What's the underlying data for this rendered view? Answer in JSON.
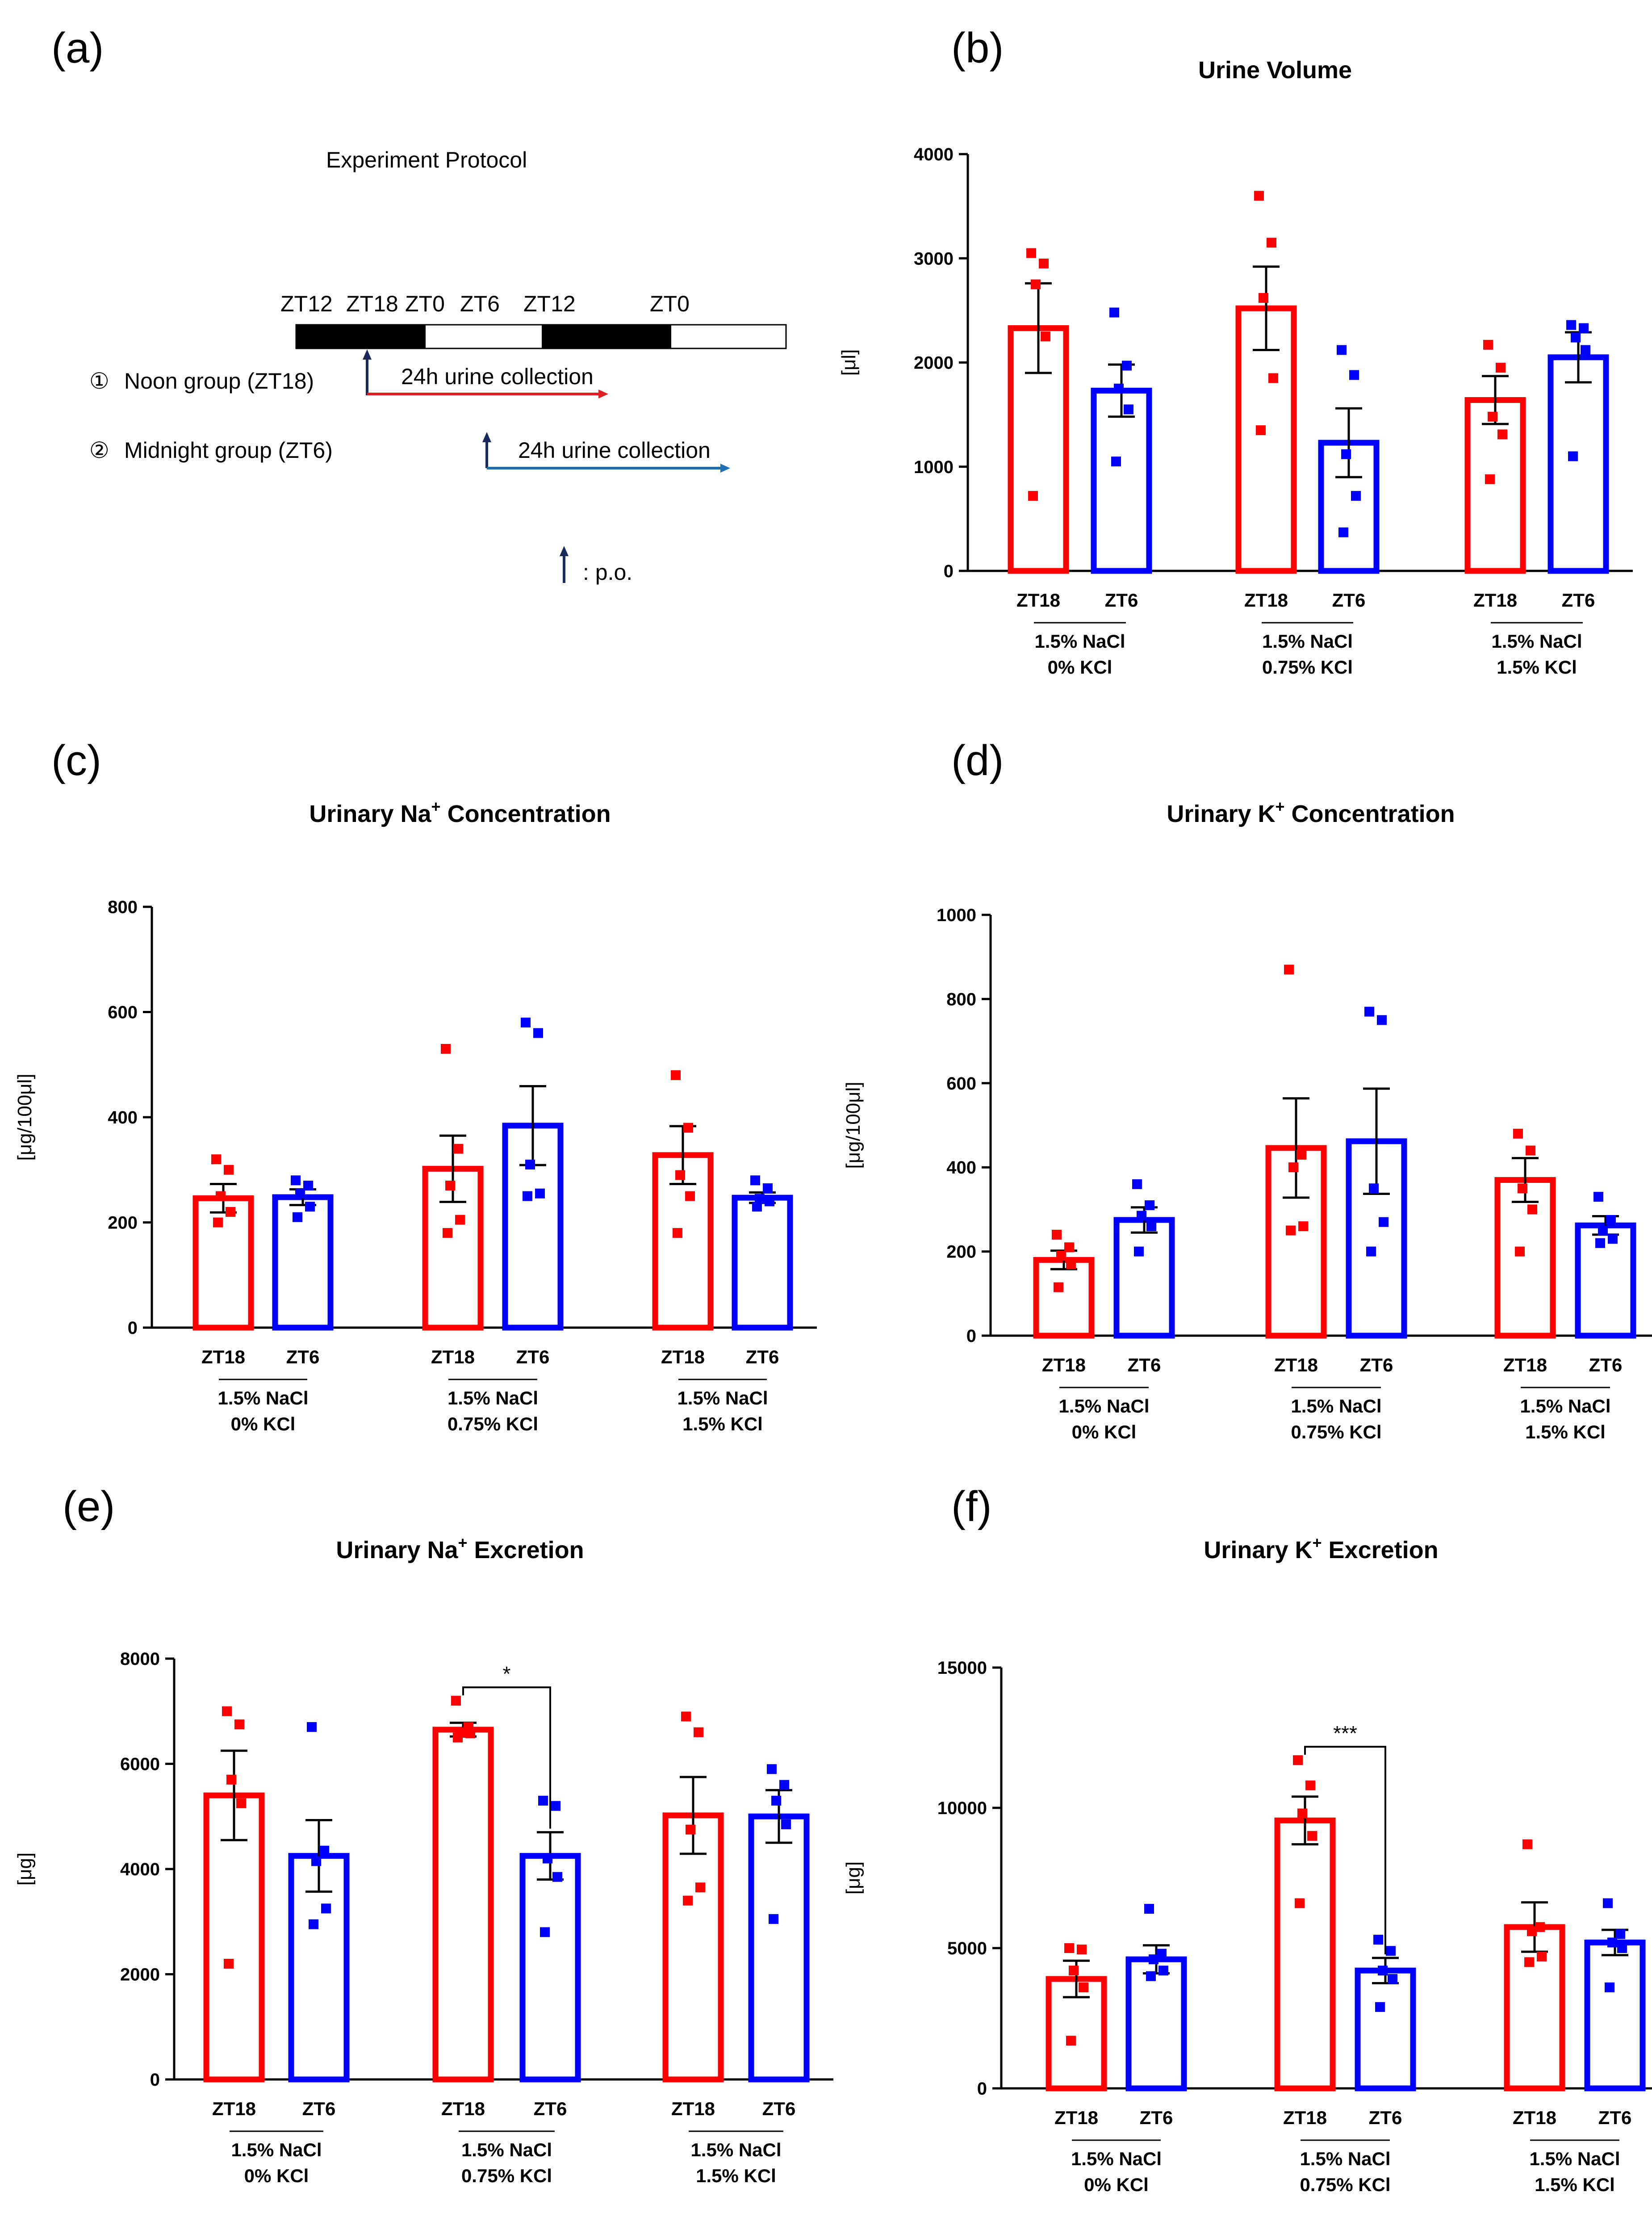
{
  "figure": {
    "panel_letters": [
      "(a)",
      "(b)",
      "(c)",
      "(d)",
      "(e)",
      "(f)"
    ]
  },
  "protocol": {
    "title": "Experiment Protocol",
    "zt_labels": [
      "ZT12",
      "ZT18",
      "ZT0",
      "ZT6",
      "ZT12",
      "ZT0"
    ],
    "groups": [
      {
        "marker": "①",
        "label": "Noon group (ZT18)",
        "collection": "24h  urine collection",
        "color": "#e02020"
      },
      {
        "marker": "②",
        "label": "Midnight group (ZT6)",
        "collection": "24h  urine collection",
        "color": "#1f6fb5"
      }
    ],
    "legend_text": ": p.o.",
    "arrow_color": "#1a2a5a"
  },
  "colors": {
    "zt18": "#ff0000",
    "zt6": "#0000ff"
  },
  "x_labels": {
    "bars": [
      "ZT18",
      "ZT6"
    ],
    "groups": [
      [
        "1.5% NaCl",
        "0% KCl"
      ],
      [
        "1.5% NaCl",
        "0.75% KCl"
      ],
      [
        "1.5% NaCl",
        "1.5% KCl"
      ]
    ]
  },
  "chart_data": [
    {
      "id": "b",
      "type": "bar",
      "title": "Urine Volume",
      "ylabel": "[μl]",
      "ylim": [
        0,
        4000
      ],
      "yticks": [
        0,
        1000,
        2000,
        3000,
        4000
      ],
      "categories": [
        "ZT18",
        "ZT6",
        "ZT18",
        "ZT6",
        "ZT18",
        "ZT6"
      ],
      "series": [
        {
          "name": "ZT18 (1.5% NaCl 0% KCl)",
          "mean": 2330,
          "sem": 430,
          "points": [
            3050,
            2950,
            2750,
            2250,
            720
          ]
        },
        {
          "name": "ZT6 (1.5% NaCl 0% KCl)",
          "mean": 1730,
          "sem": 250,
          "points": [
            2480,
            1970,
            1750,
            1550,
            1050
          ]
        },
        {
          "name": "ZT18 (1.5% NaCl 0.75% KCl)",
          "mean": 2520,
          "sem": 400,
          "points": [
            3600,
            3150,
            2620,
            1850,
            1350
          ]
        },
        {
          "name": "ZT6 (1.5% NaCl 0.75% KCl)",
          "mean": 1230,
          "sem": 330,
          "points": [
            2120,
            1880,
            1120,
            720,
            370
          ]
        },
        {
          "name": "ZT18 (1.5% NaCl 1.5% KCl)",
          "mean": 1640,
          "sem": 230,
          "points": [
            2170,
            1950,
            1480,
            1310,
            880
          ]
        },
        {
          "name": "ZT6 (1.5% NaCl 1.5% KCl)",
          "mean": 2050,
          "sem": 240,
          "points": [
            2360,
            2330,
            2240,
            2120,
            1100
          ]
        }
      ],
      "significance": []
    },
    {
      "id": "c",
      "type": "bar",
      "title": "Urinary Na",
      "title_sup": "+",
      "title_rest": " Concentration",
      "ylabel": "[μg/100μl]",
      "ylim": [
        0,
        800
      ],
      "yticks": [
        0,
        200,
        400,
        600,
        800
      ],
      "categories": [
        "ZT18",
        "ZT6",
        "ZT18",
        "ZT6",
        "ZT18",
        "ZT6"
      ],
      "series": [
        {
          "name": "ZT18 (1.5% NaCl 0% KCl)",
          "mean": 246,
          "sem": 27,
          "points": [
            320,
            300,
            250,
            220,
            200
          ]
        },
        {
          "name": "ZT6 (1.5% NaCl 0% KCl)",
          "mean": 248,
          "sem": 15,
          "points": [
            280,
            270,
            255,
            230,
            210
          ]
        },
        {
          "name": "ZT18 (1.5% NaCl 0.75% KCl)",
          "mean": 302,
          "sem": 63,
          "points": [
            530,
            340,
            270,
            205,
            180
          ]
        },
        {
          "name": "ZT6 (1.5% NaCl 0.75% KCl)",
          "mean": 384,
          "sem": 75,
          "points": [
            580,
            560,
            310,
            255,
            250
          ]
        },
        {
          "name": "ZT18 (1.5% NaCl 1.5% KCl)",
          "mean": 328,
          "sem": 55,
          "points": [
            480,
            380,
            290,
            250,
            180
          ]
        },
        {
          "name": "ZT6 (1.5% NaCl 1.5% KCl)",
          "mean": 247,
          "sem": 10,
          "points": [
            280,
            265,
            245,
            240,
            230
          ]
        }
      ],
      "significance": []
    },
    {
      "id": "d",
      "type": "bar",
      "title": "Urinary K",
      "title_sup": "+",
      "title_rest": " Concentration",
      "ylabel": "[μg/100μl]",
      "ylim": [
        0,
        1000
      ],
      "yticks": [
        0,
        200,
        400,
        600,
        800,
        1000
      ],
      "categories": [
        "ZT18",
        "ZT6",
        "ZT18",
        "ZT6",
        "ZT18",
        "ZT6"
      ],
      "series": [
        {
          "name": "ZT18 (1.5% NaCl 0% KCl)",
          "mean": 180,
          "sem": 22,
          "points": [
            240,
            210,
            190,
            170,
            115
          ]
        },
        {
          "name": "ZT6 (1.5% NaCl 0% KCl)",
          "mean": 275,
          "sem": 30,
          "points": [
            360,
            310,
            285,
            260,
            200
          ]
        },
        {
          "name": "ZT18 (1.5% NaCl 0.75% KCl)",
          "mean": 446,
          "sem": 118,
          "points": [
            870,
            430,
            400,
            260,
            250
          ]
        },
        {
          "name": "ZT6 (1.5% NaCl 0.75% KCl)",
          "mean": 462,
          "sem": 125,
          "points": [
            770,
            750,
            350,
            270,
            200
          ]
        },
        {
          "name": "ZT18 (1.5% NaCl 1.5% KCl)",
          "mean": 370,
          "sem": 52,
          "points": [
            480,
            440,
            350,
            300,
            200
          ]
        },
        {
          "name": "ZT6 (1.5% NaCl 1.5% KCl)",
          "mean": 262,
          "sem": 22,
          "points": [
            330,
            275,
            250,
            230,
            220
          ]
        }
      ],
      "significance": []
    },
    {
      "id": "e",
      "type": "bar",
      "title": "Urinary Na",
      "title_sup": "+",
      "title_rest": " Excretion",
      "ylabel": "[μg]",
      "ylim": [
        0,
        8000
      ],
      "yticks": [
        0,
        2000,
        4000,
        6000,
        8000
      ],
      "categories": [
        "ZT18",
        "ZT6",
        "ZT18",
        "ZT6",
        "ZT18",
        "ZT6"
      ],
      "series": [
        {
          "name": "ZT18 (1.5% NaCl 0% KCl)",
          "mean": 5400,
          "sem": 850,
          "points": [
            7000,
            6750,
            5700,
            5250,
            2200
          ]
        },
        {
          "name": "ZT6 (1.5% NaCl 0% KCl)",
          "mean": 4250,
          "sem": 680,
          "points": [
            6700,
            4350,
            4150,
            3250,
            2950
          ]
        },
        {
          "name": "ZT18 (1.5% NaCl 0.75% KCl)",
          "mean": 6650,
          "sem": 130,
          "points": [
            7200,
            6700,
            6600,
            6580,
            6500
          ]
        },
        {
          "name": "ZT6 (1.5% NaCl 0.75% KCl)",
          "mean": 4250,
          "sem": 450,
          "points": [
            5300,
            5200,
            4200,
            3850,
            2800
          ]
        },
        {
          "name": "ZT18 (1.5% NaCl 1.5% KCl)",
          "mean": 5020,
          "sem": 730,
          "points": [
            6900,
            6600,
            4750,
            3650,
            3400
          ]
        },
        {
          "name": "ZT6 (1.5% NaCl 1.5% KCl)",
          "mean": 5000,
          "sem": 500,
          "points": [
            5900,
            5600,
            5300,
            4850,
            3050
          ]
        }
      ],
      "significance": [
        {
          "pair": [
            2,
            3
          ],
          "label": "*"
        }
      ]
    },
    {
      "id": "f",
      "type": "bar",
      "title": "Urinary K",
      "title_sup": "+",
      "title_rest": " Excretion",
      "ylabel": "[μg]",
      "ylim": [
        0,
        15000
      ],
      "yticks": [
        0,
        5000,
        10000,
        15000
      ],
      "categories": [
        "ZT18",
        "ZT6",
        "ZT18",
        "ZT6",
        "ZT18",
        "ZT6"
      ],
      "series": [
        {
          "name": "ZT18 (1.5% NaCl 0% KCl)",
          "mean": 3900,
          "sem": 650,
          "points": [
            5000,
            4950,
            4200,
            3600,
            1700
          ]
        },
        {
          "name": "ZT6 (1.5% NaCl 0% KCl)",
          "mean": 4600,
          "sem": 500,
          "points": [
            6400,
            4800,
            4600,
            4200,
            4000
          ]
        },
        {
          "name": "ZT18 (1.5% NaCl 0.75% KCl)",
          "mean": 9550,
          "sem": 850,
          "points": [
            11700,
            10800,
            9800,
            9000,
            6600
          ]
        },
        {
          "name": "ZT6 (1.5% NaCl 0.75% KCl)",
          "mean": 4200,
          "sem": 450,
          "points": [
            5300,
            4900,
            4200,
            3900,
            2900
          ]
        },
        {
          "name": "ZT18 (1.5% NaCl 1.5% KCl)",
          "mean": 5750,
          "sem": 880,
          "points": [
            8700,
            5750,
            5600,
            4700,
            4500
          ]
        },
        {
          "name": "ZT6 (1.5% NaCl 1.5% KCl)",
          "mean": 5200,
          "sem": 450,
          "points": [
            6600,
            5500,
            5200,
            5000,
            3600
          ]
        }
      ],
      "significance": [
        {
          "pair": [
            2,
            3
          ],
          "label": "***"
        }
      ]
    }
  ]
}
